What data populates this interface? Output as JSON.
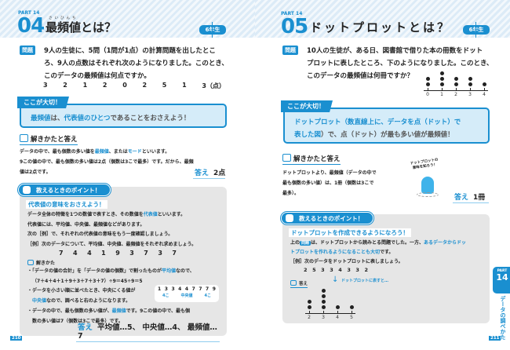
{
  "left": {
    "part": "PART 14",
    "number": "04",
    "title": "最頻値とは？",
    "title_furigana": "さいひんち",
    "grade": "6年生",
    "question_label": "問題",
    "question_lines": [
      "9人の生徒に、5問（1問が1点）の計算問題を出したとこ",
      "ろ、9人の点数はそれぞれ次のようになりました。このとき、",
      "このデータの最頻値は何点ですか。"
    ],
    "scores": [
      "3",
      "2",
      "1",
      "2",
      "0",
      "2",
      "5",
      "1",
      "3（点）"
    ],
    "important_label": "ここが大切！",
    "important": {
      "a": "最頻値",
      "b": "は、",
      "c": "代表値",
      "c_furigana": "だいひょうち",
      "d": "のひとつ",
      "e": "であることをおさえよう！"
    },
    "solve_heading": "解きかたと答え",
    "solve_lines": [
      [
        "データの中で、最も個数の多い値を",
        "最頻値",
        "、または",
        "モード",
        "といいます。"
      ],
      [
        "9この値の中で、最も個数の多い値は2点（個数は3こで最多）です。だから、最頻",
        ""
      ],
      [
        "値は2点です。"
      ]
    ],
    "answer_label": "答え",
    "answer": "2点",
    "point_tab": "教えるときのポイント！",
    "point_sub": "代表値の意味をおさえよう！",
    "point_lines": [
      "データ全体の特徴を1つの数値で表すとき、その数値を",
      "代表値",
      "といいます。",
      "代表値には、平均値、中央値、最頻値などがあります。",
      "次の［例］で、それぞれの代表値の意味をもう一度確認しましょう。",
      "［例］次のデータについて、平均値、中央値、最頻値をそれぞれ求めましょう。"
    ],
    "example_data": [
      "7",
      "4",
      "4",
      "1",
      "9",
      "3",
      "7",
      "3",
      "7"
    ],
    "solve_small": "解きかた",
    "bullets": [
      [
        "・「データの値の合計」を「データの値の個数」で割ったものが",
        "平均値",
        "なので、"
      ],
      [
        "（7＋4＋4＋1＋9＋3＋7＋3＋7）÷9＝45÷9＝5"
      ],
      [
        "・データを小さい順に並べたとき、中央にくる値が"
      ],
      [
        "中央値",
        "なので、調べると右のようになります。"
      ],
      [
        "・データの中で、最も個数の多い値が、",
        "最頻値",
        "です。9この値の中で、最も個"
      ],
      [
        "数の多い値は7（個数は3こで最多）です。"
      ]
    ],
    "sorted": [
      "1",
      "3",
      "3",
      "4",
      "4",
      "7",
      "7",
      "7",
      "9"
    ],
    "sorted_labels": [
      "4こ",
      "中央値",
      "4こ"
    ],
    "final_answer_label": "答え",
    "final_answer": "平均値…5、 中央値…4、 最頻値…7",
    "page_number": "210"
  },
  "right": {
    "part": "PART 14",
    "number": "05",
    "title": "ドットプロットとは？",
    "grade": "6年生",
    "question_label": "問題",
    "question_lines": [
      "10人の生徒が、ある日、図書館で借りた本の冊数をドット",
      "プロットに表したところ、下のようになりました。このとき、",
      "このデータの最頻値は何冊ですか？"
    ],
    "dotplot1": {
      "ticks": [
        "0",
        "1",
        "2",
        "3",
        "4"
      ],
      "counts": [
        2,
        3,
        2,
        2,
        1
      ]
    },
    "important_label": "ここが大切！",
    "important": {
      "a": "ドットプロット（数直線上に、データを点（ドット）で",
      "b": "表した図",
      "c": "）で、点（ドット）が最も多い値が最頻値！"
    },
    "solve_heading": "解きかたと答え",
    "solve_lines": [
      "ドットプロットより、最頻値（データの中で",
      "最も個数の多い値）は、1冊（個数は3こで",
      "最多）。"
    ],
    "bubble": [
      "ドットプロットの",
      "意味を知ろう！"
    ],
    "answer_label": "答え",
    "answer": "1冊",
    "point_tab": "教えるときのポイント！",
    "point_sub": "ドットプロットを作成できるようになろう！",
    "point_lines": {
      "a": "上の",
      "tag": "問題",
      "b": "は、ドットプロットから読みとる問題でした。一方、",
      "c": "あるデータからドッ",
      "d": "トプロットを作れるようになることも大切",
      "e": "です。"
    },
    "example": "［例］次のデータをドットプロットに表しましょう。",
    "example_data": [
      "2",
      "5",
      "3",
      "3",
      "4",
      "3",
      "3",
      "2"
    ],
    "arrow_note": "ドットプロットに表すと…",
    "answer_small": "答え",
    "dotplot2": {
      "ticks": [
        "2",
        "3",
        "4",
        "5"
      ],
      "counts": [
        2,
        4,
        1,
        1
      ]
    },
    "side_part": "PART",
    "side_num": "14",
    "side_title": "データの調べかた",
    "page_number": "211"
  },
  "colors": {
    "accent": "#1a8fd0",
    "box": "#d5ecf9",
    "point_bg": "#e6e6e6"
  }
}
